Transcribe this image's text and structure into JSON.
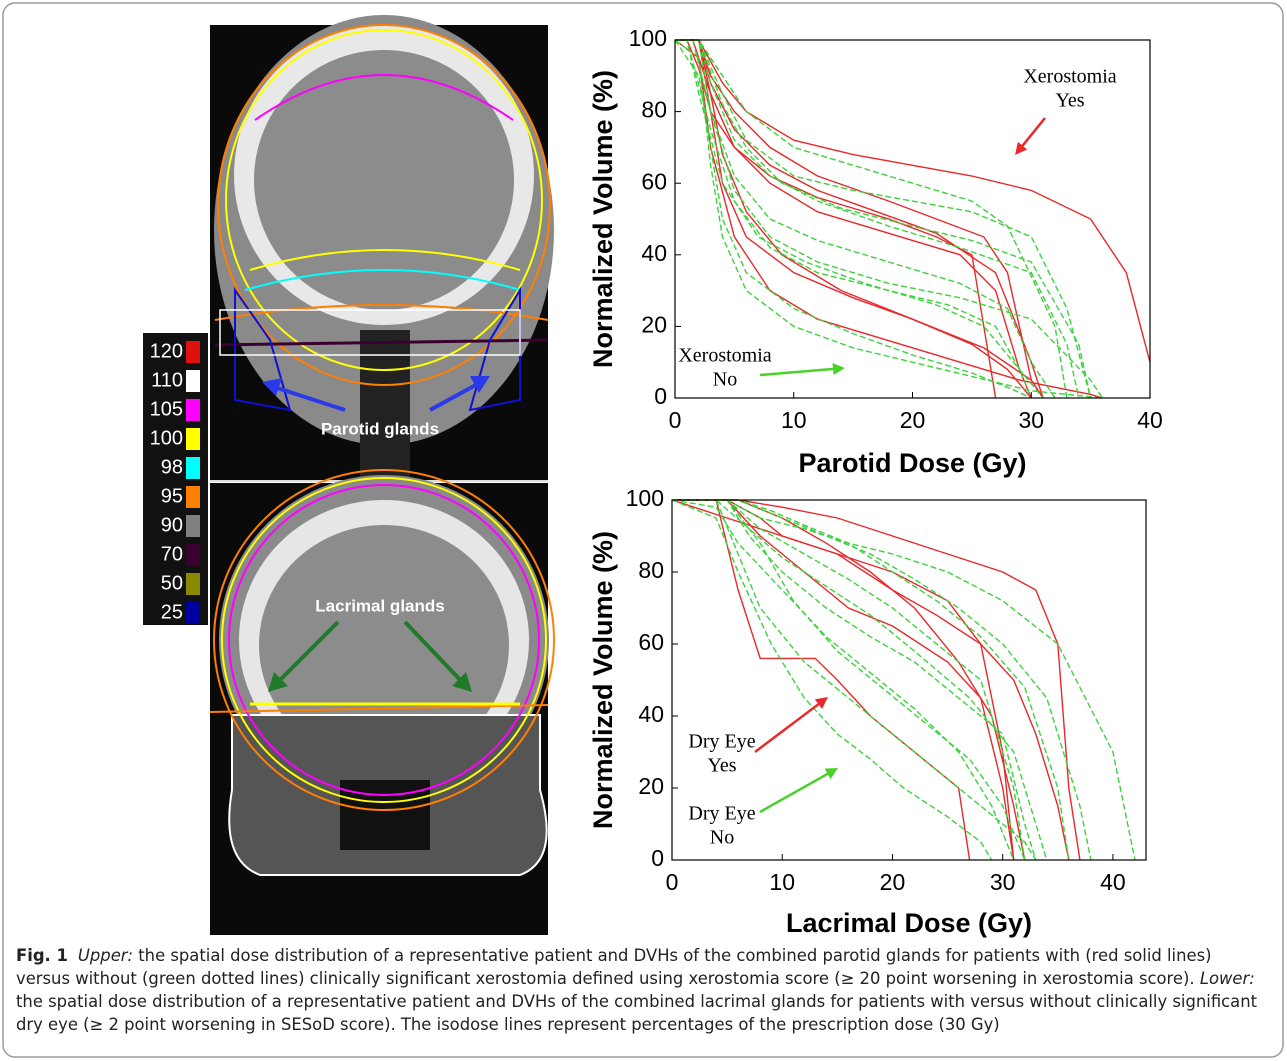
{
  "images": {
    "upper_label": "Parotid glands",
    "lower_label": "Lacrimal glands",
    "colorbar": [
      {
        "label": 120,
        "color": "#e01010"
      },
      {
        "label": 110,
        "color": "#ffffff"
      },
      {
        "label": 105,
        "color": "#ff00ff"
      },
      {
        "label": 100,
        "color": "#ffff00"
      },
      {
        "label": 98,
        "color": "#00ffff"
      },
      {
        "label": 95,
        "color": "#ff7f00"
      },
      {
        "label": 90,
        "color": "#808080"
      },
      {
        "label": 70,
        "color": "#3a0030"
      },
      {
        "label": 50,
        "color": "#8a8a00"
      },
      {
        "label": 25,
        "color": "#0000a0"
      }
    ]
  },
  "chart_data": [
    {
      "type": "line",
      "x_label": "Parotid Dose (Gy)",
      "y_label": "Normalized Volume (%)",
      "xlim": [
        0,
        40
      ],
      "xticks": [
        0,
        10,
        20,
        30,
        40
      ],
      "ylim": [
        0,
        100
      ],
      "yticks": [
        0,
        20,
        40,
        60,
        80,
        100
      ],
      "annotations": [
        {
          "text": [
            "Xerostomia",
            "Yes"
          ],
          "color": "#e8282a"
        },
        {
          "text": [
            "Xerostomia",
            "No"
          ],
          "color": "#4ad22a"
        }
      ],
      "series": [
        {
          "color": "#e8282a",
          "style": "solid",
          "x": [
            0,
            2,
            4,
            6,
            10,
            15,
            20,
            25,
            30,
            35,
            38,
            40
          ],
          "values": [
            100,
            100,
            88,
            80,
            72,
            68,
            65,
            62,
            58,
            50,
            35,
            10
          ]
        },
        {
          "color": "#e8282a",
          "style": "solid",
          "x": [
            0,
            2,
            3,
            5,
            8,
            12,
            18,
            22,
            26,
            28,
            29,
            30,
            31
          ],
          "values": [
            100,
            100,
            90,
            80,
            70,
            62,
            55,
            50,
            45,
            35,
            20,
            5,
            0
          ]
        },
        {
          "color": "#e8282a",
          "style": "solid",
          "x": [
            0,
            1.5,
            3,
            5,
            8,
            12,
            18,
            24,
            27,
            29,
            30
          ],
          "values": [
            100,
            100,
            85,
            70,
            60,
            52,
            46,
            40,
            30,
            8,
            0
          ]
        },
        {
          "color": "#e8282a",
          "style": "solid",
          "x": [
            0,
            2,
            3,
            4,
            6,
            10,
            15,
            20,
            25,
            28,
            30
          ],
          "values": [
            100,
            100,
            80,
            60,
            45,
            35,
            28,
            22,
            15,
            8,
            0
          ]
        },
        {
          "color": "#e8282a",
          "style": "solid",
          "x": [
            0,
            2,
            3,
            5,
            8,
            12,
            18,
            24,
            29,
            35,
            36
          ],
          "values": [
            100,
            95,
            70,
            45,
            30,
            22,
            16,
            10,
            5,
            1,
            0
          ]
        },
        {
          "color": "#e8282a",
          "style": "solid",
          "x": [
            0,
            1,
            2,
            3,
            5,
            8,
            12,
            18,
            22,
            25,
            26,
            27
          ],
          "values": [
            100,
            100,
            92,
            80,
            70,
            62,
            56,
            50,
            45,
            40,
            20,
            0
          ]
        },
        {
          "color": "#e8282a",
          "style": "solid",
          "x": [
            0,
            2,
            3,
            5,
            8,
            12,
            17,
            22,
            27,
            30,
            31
          ],
          "values": [
            100,
            100,
            88,
            75,
            65,
            58,
            52,
            46,
            35,
            10,
            0
          ]
        },
        {
          "color": "#e8282a",
          "style": "solid",
          "x": [
            0,
            2,
            3,
            4,
            6,
            9,
            14,
            20,
            26,
            30,
            31
          ],
          "values": [
            100,
            100,
            85,
            68,
            52,
            40,
            30,
            22,
            14,
            5,
            0
          ]
        },
        {
          "color": "#3ed13e",
          "style": "dashed",
          "x": [
            0,
            2,
            4,
            6,
            10,
            15,
            20,
            25,
            30,
            33,
            35
          ],
          "values": [
            100,
            100,
            85,
            72,
            62,
            58,
            55,
            52,
            45,
            25,
            0
          ]
        },
        {
          "color": "#3ed13e",
          "style": "dashed",
          "x": [
            0,
            1.5,
            3,
            5,
            8,
            12,
            18,
            24,
            28,
            30,
            32
          ],
          "values": [
            100,
            100,
            80,
            62,
            50,
            44,
            38,
            32,
            25,
            10,
            0
          ]
        },
        {
          "color": "#3ed13e",
          "style": "dashed",
          "x": [
            0,
            2,
            3,
            4,
            6,
            10,
            15,
            20,
            25,
            28,
            30
          ],
          "values": [
            100,
            90,
            70,
            50,
            35,
            25,
            18,
            12,
            7,
            3,
            0
          ]
        },
        {
          "color": "#3ed13e",
          "style": "dashed",
          "x": [
            0,
            2,
            4,
            6,
            9,
            14,
            20,
            25,
            30,
            34,
            35
          ],
          "values": [
            100,
            100,
            82,
            70,
            60,
            53,
            48,
            44,
            38,
            15,
            0
          ]
        },
        {
          "color": "#3ed13e",
          "style": "dashed",
          "x": [
            0,
            1,
            3,
            5,
            8,
            12,
            18,
            23,
            27,
            29,
            30
          ],
          "values": [
            100,
            100,
            75,
            55,
            42,
            35,
            30,
            26,
            20,
            8,
            0
          ]
        },
        {
          "color": "#3ed13e",
          "style": "dashed",
          "x": [
            0,
            2,
            3,
            5,
            8,
            12,
            18,
            24,
            30,
            33,
            34
          ],
          "values": [
            100,
            100,
            88,
            72,
            62,
            55,
            48,
            42,
            35,
            15,
            0
          ]
        },
        {
          "color": "#3ed13e",
          "style": "dashed",
          "x": [
            0,
            2,
            3,
            4,
            6,
            10,
            15,
            20,
            25,
            30,
            36
          ],
          "values": [
            100,
            95,
            65,
            45,
            30,
            20,
            14,
            10,
            6,
            2,
            0
          ]
        },
        {
          "color": "#3ed13e",
          "style": "dashed",
          "x": [
            0,
            2,
            4,
            6,
            10,
            15,
            20,
            25,
            28,
            32,
            33
          ],
          "values": [
            100,
            100,
            90,
            80,
            70,
            65,
            60,
            55,
            48,
            20,
            0
          ]
        },
        {
          "color": "#3ed13e",
          "style": "dashed",
          "x": [
            0,
            1,
            2,
            4,
            7,
            11,
            16,
            22,
            26,
            29,
            31
          ],
          "values": [
            100,
            100,
            85,
            60,
            45,
            38,
            32,
            26,
            20,
            8,
            0
          ]
        },
        {
          "color": "#3ed13e",
          "style": "dashed",
          "x": [
            0,
            2,
            3,
            5,
            8,
            12,
            18,
            24,
            30,
            35,
            36
          ],
          "values": [
            100,
            100,
            80,
            58,
            45,
            38,
            32,
            28,
            22,
            5,
            0
          ]
        }
      ]
    },
    {
      "type": "line",
      "x_label": "Lacrimal Dose (Gy)",
      "y_label": "Normalized Volume (%)",
      "xlim": [
        0,
        43
      ],
      "xticks": [
        0,
        10,
        20,
        30,
        40
      ],
      "ylim": [
        0,
        100
      ],
      "yticks": [
        0,
        20,
        40,
        60,
        80,
        100
      ],
      "annotations": [
        {
          "text": [
            "Dry Eye",
            "Yes"
          ],
          "color": "#e8282a"
        },
        {
          "text": [
            "Dry Eye",
            "No"
          ],
          "color": "#4ad22a"
        }
      ],
      "series": [
        {
          "color": "#e8282a",
          "style": "solid",
          "x": [
            0,
            5,
            8,
            10,
            15,
            20,
            25,
            28,
            30,
            31
          ],
          "values": [
            100,
            100,
            95,
            90,
            85,
            80,
            72,
            60,
            30,
            0
          ]
        },
        {
          "color": "#e8282a",
          "style": "solid",
          "x": [
            0,
            4,
            6,
            8,
            10,
            13,
            15,
            18,
            22,
            26,
            27
          ],
          "values": [
            100,
            100,
            75,
            56,
            56,
            56,
            50,
            40,
            30,
            20,
            0
          ]
        },
        {
          "color": "#e8282a",
          "style": "solid",
          "x": [
            0,
            6,
            10,
            15,
            20,
            25,
            30,
            33,
            35,
            36,
            37
          ],
          "values": [
            100,
            100,
            98,
            95,
            90,
            85,
            80,
            75,
            60,
            20,
            0
          ]
        },
        {
          "color": "#e8282a",
          "style": "solid",
          "x": [
            0,
            5,
            8,
            12,
            16,
            20,
            25,
            28,
            30,
            31
          ],
          "values": [
            100,
            100,
            90,
            80,
            70,
            65,
            55,
            45,
            20,
            0
          ]
        },
        {
          "color": "#e8282a",
          "style": "solid",
          "x": [
            0,
            5,
            10,
            15,
            20,
            24,
            28,
            31,
            33,
            35,
            36
          ],
          "values": [
            100,
            95,
            90,
            85,
            75,
            68,
            60,
            50,
            35,
            15,
            0
          ]
        },
        {
          "color": "#e8282a",
          "style": "solid",
          "x": [
            0,
            6,
            10,
            14,
            18,
            22,
            26,
            29,
            31,
            32
          ],
          "values": [
            100,
            100,
            95,
            88,
            80,
            70,
            55,
            40,
            15,
            0
          ]
        },
        {
          "color": "#3ed13e",
          "style": "dashed",
          "x": [
            0,
            4,
            6,
            8,
            12,
            16,
            20,
            24,
            28,
            32,
            33
          ],
          "values": [
            100,
            100,
            85,
            70,
            55,
            45,
            35,
            25,
            15,
            5,
            0
          ]
        },
        {
          "color": "#3ed13e",
          "style": "dashed",
          "x": [
            0,
            5,
            8,
            12,
            16,
            20,
            25,
            30,
            35,
            40,
            42
          ],
          "values": [
            100,
            100,
            95,
            92,
            88,
            85,
            80,
            72,
            60,
            30,
            0
          ]
        },
        {
          "color": "#3ed13e",
          "style": "dashed",
          "x": [
            0,
            4,
            6,
            9,
            12,
            15,
            18,
            21,
            25,
            28,
            29
          ],
          "values": [
            100,
            95,
            80,
            60,
            45,
            35,
            28,
            20,
            12,
            5,
            0
          ]
        },
        {
          "color": "#3ed13e",
          "style": "dashed",
          "x": [
            0,
            5,
            8,
            12,
            16,
            20,
            24,
            28,
            31,
            32
          ],
          "values": [
            100,
            100,
            92,
            85,
            78,
            70,
            60,
            50,
            20,
            0
          ]
        },
        {
          "color": "#3ed13e",
          "style": "dashed",
          "x": [
            0,
            6,
            10,
            14,
            18,
            22,
            26,
            30,
            34,
            37,
            38
          ],
          "values": [
            100,
            100,
            95,
            90,
            85,
            78,
            70,
            60,
            45,
            15,
            0
          ]
        },
        {
          "color": "#3ed13e",
          "style": "dashed",
          "x": [
            0,
            4,
            6,
            10,
            14,
            18,
            22,
            26,
            29,
            31
          ],
          "values": [
            100,
            98,
            88,
            75,
            62,
            52,
            42,
            30,
            15,
            0
          ]
        },
        {
          "color": "#3ed13e",
          "style": "dashed",
          "x": [
            0,
            5,
            7,
            10,
            14,
            18,
            22,
            26,
            30,
            32,
            33
          ],
          "values": [
            100,
            100,
            90,
            80,
            70,
            62,
            55,
            45,
            35,
            10,
            0
          ]
        },
        {
          "color": "#3ed13e",
          "style": "dashed",
          "x": [
            0,
            6,
            9,
            12,
            16,
            20,
            24,
            28,
            32,
            35,
            36
          ],
          "values": [
            100,
            100,
            97,
            93,
            88,
            80,
            72,
            62,
            48,
            20,
            0
          ]
        },
        {
          "color": "#3ed13e",
          "style": "dashed",
          "x": [
            0,
            5,
            8,
            11,
            15,
            19,
            23,
            27,
            30,
            32
          ],
          "values": [
            100,
            100,
            88,
            72,
            58,
            48,
            38,
            28,
            15,
            0
          ]
        },
        {
          "color": "#3ed13e",
          "style": "dashed",
          "x": [
            0,
            4,
            7,
            10,
            14,
            18,
            22,
            27,
            31,
            33,
            34
          ],
          "values": [
            100,
            100,
            92,
            84,
            76,
            68,
            58,
            45,
            30,
            10,
            0
          ]
        }
      ]
    }
  ],
  "caption": {
    "label": "Fig. 1",
    "segments": [
      {
        "text": "Upper:",
        "italic": true
      },
      {
        "text": " the spatial dose distribution of a representative patient and DVHs of the combined parotid glands for patients with (red solid lines) versus without (green dotted lines) clinically significant xerostomia defined using xerostomia score (≥ 20 point worsening in xerostomia score). "
      },
      {
        "text": "Lower:",
        "italic": true
      },
      {
        "text": " the spatial dose distribution of a representative patient and DVHs of the combined lacrimal glands for patients with versus without clinically significant dry eye (≥ 2 point worsening in SESoD score). The isodose lines represent percentages of the prescription dose (30 Gy)"
      }
    ]
  }
}
